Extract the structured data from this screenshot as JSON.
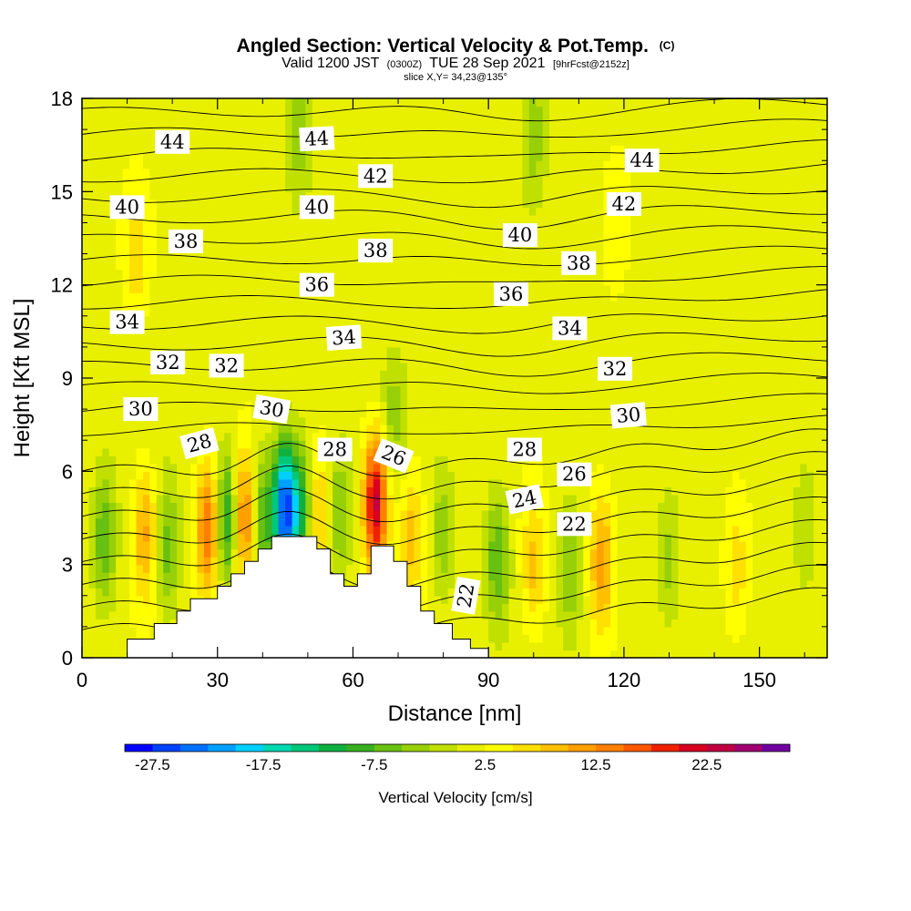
{
  "header": {
    "title": "Angled Section: Vertical Velocity & Pot.Temp.",
    "title_unit": "(C)",
    "valid_prefix": "Valid 1200 JST",
    "valid_utc": "(0300Z)",
    "valid_date": "TUE 28 Sep 2021",
    "valid_fcst": "[9hrFcst@2152z]",
    "slice": "slice X,Y= 34,23@135°"
  },
  "chart_data": {
    "type": "heatmap",
    "xlabel": "Distance [nm]",
    "ylabel": "Height [Kft MSL]",
    "xlim": [
      0,
      165
    ],
    "ylim": [
      0,
      18
    ],
    "x_ticks": [
      "0",
      "30",
      "60",
      "90",
      "120",
      "150"
    ],
    "y_ticks": [
      "0",
      "3",
      "6",
      "9",
      "12",
      "15",
      "18"
    ],
    "colorbar": {
      "label": "Vertical Velocity [cm/s]",
      "tick_labels": [
        "-27.5",
        "-17.5",
        "-7.5",
        "2.5",
        "12.5",
        "22.5"
      ],
      "tick_values": [
        -27.5,
        -17.5,
        -7.5,
        2.5,
        12.5,
        22.5
      ],
      "range": [
        -30,
        30
      ],
      "colors": [
        "#0000ff",
        "#0040ff",
        "#0070ff",
        "#00a0ff",
        "#00d0ff",
        "#00d8b0",
        "#00c878",
        "#10b040",
        "#38b020",
        "#68c010",
        "#98d008",
        "#c0e000",
        "#e8f000",
        "#ffff00",
        "#ffe000",
        "#ffc000",
        "#ffa000",
        "#ff8000",
        "#ff5800",
        "#f02000",
        "#d80020",
        "#c00040",
        "#a00070",
        "#7000a0"
      ]
    },
    "terrain_kft": [
      [
        0,
        0
      ],
      [
        10,
        0
      ],
      [
        10,
        0.6
      ],
      [
        16,
        0.6
      ],
      [
        16,
        1.1
      ],
      [
        21,
        1.1
      ],
      [
        21,
        1.5
      ],
      [
        24,
        1.5
      ],
      [
        24,
        1.9
      ],
      [
        30,
        1.9
      ],
      [
        30,
        2.3
      ],
      [
        33,
        2.3
      ],
      [
        33,
        2.7
      ],
      [
        36,
        2.7
      ],
      [
        36,
        3.1
      ],
      [
        39,
        3.1
      ],
      [
        39,
        3.5
      ],
      [
        42,
        3.5
      ],
      [
        42,
        3.9
      ],
      [
        52,
        3.9
      ],
      [
        52,
        3.5
      ],
      [
        55,
        3.5
      ],
      [
        55,
        2.7
      ],
      [
        58,
        2.7
      ],
      [
        58,
        2.3
      ],
      [
        61,
        2.3
      ],
      [
        61,
        2.7
      ],
      [
        64,
        2.7
      ],
      [
        64,
        3.6
      ],
      [
        69,
        3.6
      ],
      [
        69,
        3.1
      ],
      [
        72,
        3.1
      ],
      [
        72,
        2.3
      ],
      [
        75,
        2.3
      ],
      [
        75,
        1.5
      ],
      [
        78,
        1.5
      ],
      [
        78,
        1.1
      ],
      [
        82,
        1.1
      ],
      [
        82,
        0.6
      ],
      [
        86,
        0.6
      ],
      [
        86,
        0.3
      ],
      [
        90,
        0.3
      ],
      [
        90,
        0
      ],
      [
        0,
        0
      ]
    ],
    "velocity_features": [
      {
        "x": 5,
        "z": 3.8,
        "w": -9
      },
      {
        "x": 14,
        "z": 4.0,
        "w": 9
      },
      {
        "x": 19,
        "z": 3.5,
        "w": -8
      },
      {
        "x": 28,
        "z": 4.2,
        "w": 14
      },
      {
        "x": 32,
        "z": 4.5,
        "w": -13
      },
      {
        "x": 36,
        "z": 4.5,
        "w": 13
      },
      {
        "x": 40,
        "z": 4.6,
        "w": -10
      },
      {
        "x": 45,
        "z": 4.8,
        "w": -28
      },
      {
        "x": 49,
        "z": 4.7,
        "w": -12
      },
      {
        "x": 52,
        "z": 4.5,
        "w": 9
      },
      {
        "x": 57,
        "z": 4.7,
        "w": -7
      },
      {
        "x": 65,
        "z": 5.0,
        "w": 22
      },
      {
        "x": 69,
        "z": 7.8,
        "w": -5
      },
      {
        "x": 73,
        "z": 4.0,
        "w": 7
      },
      {
        "x": 80,
        "z": 4.0,
        "w": -6
      },
      {
        "x": 92,
        "z": 3.2,
        "w": -9
      },
      {
        "x": 100,
        "z": 3.0,
        "w": 7
      },
      {
        "x": 108,
        "z": 3.0,
        "w": -7
      },
      {
        "x": 115,
        "z": 3.0,
        "w": 10
      },
      {
        "x": 130,
        "z": 3.0,
        "w": -5
      },
      {
        "x": 145,
        "z": 3.0,
        "w": 5
      },
      {
        "x": 160,
        "z": 4.5,
        "w": -4
      },
      {
        "x": 12,
        "z": 13.0,
        "w": 5
      },
      {
        "x": 48,
        "z": 17.0,
        "w": -6
      },
      {
        "x": 100,
        "z": 17.0,
        "w": -6
      },
      {
        "x": 118,
        "z": 14.0,
        "w": 3
      }
    ],
    "theta_levels": [
      22,
      23,
      24,
      25,
      26,
      27,
      28,
      29,
      30,
      31,
      32,
      33,
      34,
      35,
      36,
      37,
      38,
      39,
      40,
      41,
      42,
      43,
      44,
      45
    ],
    "contour_labels": [
      {
        "text": "44",
        "x": 20,
        "z": 16.6,
        "angle": 0
      },
      {
        "text": "44",
        "x": 52,
        "z": 16.7,
        "angle": -3
      },
      {
        "text": "42",
        "x": 65,
        "z": 15.5,
        "angle": 0
      },
      {
        "text": "44",
        "x": 124,
        "z": 16.0,
        "angle": 0
      },
      {
        "text": "40",
        "x": 10,
        "z": 14.5,
        "angle": 0
      },
      {
        "text": "40",
        "x": 52,
        "z": 14.5,
        "angle": 0
      },
      {
        "text": "42",
        "x": 120,
        "z": 14.6,
        "angle": 0
      },
      {
        "text": "38",
        "x": 23,
        "z": 13.4,
        "angle": 0
      },
      {
        "text": "38",
        "x": 65,
        "z": 13.1,
        "angle": 0
      },
      {
        "text": "40",
        "x": 97,
        "z": 13.6,
        "angle": 0
      },
      {
        "text": "38",
        "x": 110,
        "z": 12.7,
        "angle": 0
      },
      {
        "text": "36",
        "x": 52,
        "z": 12.0,
        "angle": 0
      },
      {
        "text": "36",
        "x": 95,
        "z": 11.7,
        "angle": 0
      },
      {
        "text": "34",
        "x": 10,
        "z": 10.8,
        "angle": 0
      },
      {
        "text": "34",
        "x": 58,
        "z": 10.3,
        "angle": -4
      },
      {
        "text": "34",
        "x": 108,
        "z": 10.6,
        "angle": 0
      },
      {
        "text": "32",
        "x": 19,
        "z": 9.5,
        "angle": 0
      },
      {
        "text": "32",
        "x": 32,
        "z": 9.4,
        "angle": 0
      },
      {
        "text": "32",
        "x": 118,
        "z": 9.3,
        "angle": 0
      },
      {
        "text": "30",
        "x": 13,
        "z": 8.0,
        "angle": 0
      },
      {
        "text": "30",
        "x": 42,
        "z": 8.0,
        "angle": 10
      },
      {
        "text": "30",
        "x": 121,
        "z": 7.8,
        "angle": -5
      },
      {
        "text": "28",
        "x": 26,
        "z": 6.9,
        "angle": -15
      },
      {
        "text": "28",
        "x": 56,
        "z": 6.7,
        "angle": 0
      },
      {
        "text": "26",
        "x": 69,
        "z": 6.5,
        "angle": 22
      },
      {
        "text": "28",
        "x": 98,
        "z": 6.7,
        "angle": 0
      },
      {
        "text": "26",
        "x": 109,
        "z": 5.9,
        "angle": 0
      },
      {
        "text": "24",
        "x": 98,
        "z": 5.1,
        "angle": -12
      },
      {
        "text": "22",
        "x": 109,
        "z": 4.3,
        "angle": 0
      },
      {
        "text": "22",
        "x": 85,
        "z": 2.0,
        "angle": -80
      }
    ]
  }
}
